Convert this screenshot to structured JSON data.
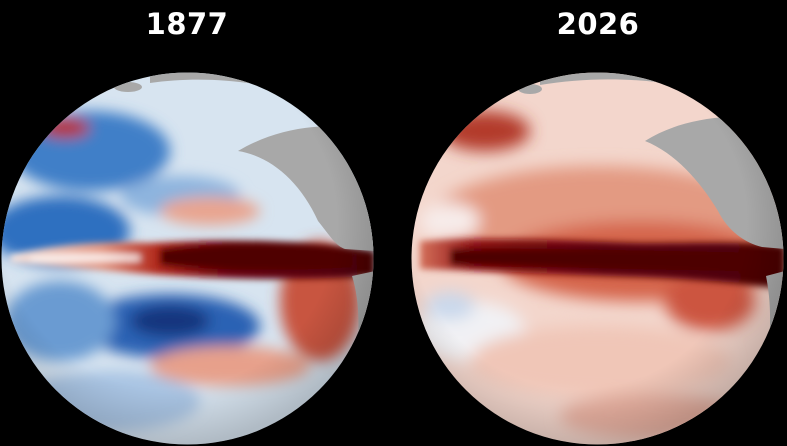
{
  "panels": [
    {
      "year": "1877"
    },
    {
      "year": "2026"
    }
  ],
  "colors": {
    "background": "#000000",
    "land": "#a8a8a8",
    "warm_anomaly": "#c0392b",
    "strong_warm_anomaly": "#5a0008",
    "cool_anomaly": "#2f6fc0",
    "strong_cool_anomaly": "#103a8a",
    "neutral": "#f2f2f2"
  }
}
